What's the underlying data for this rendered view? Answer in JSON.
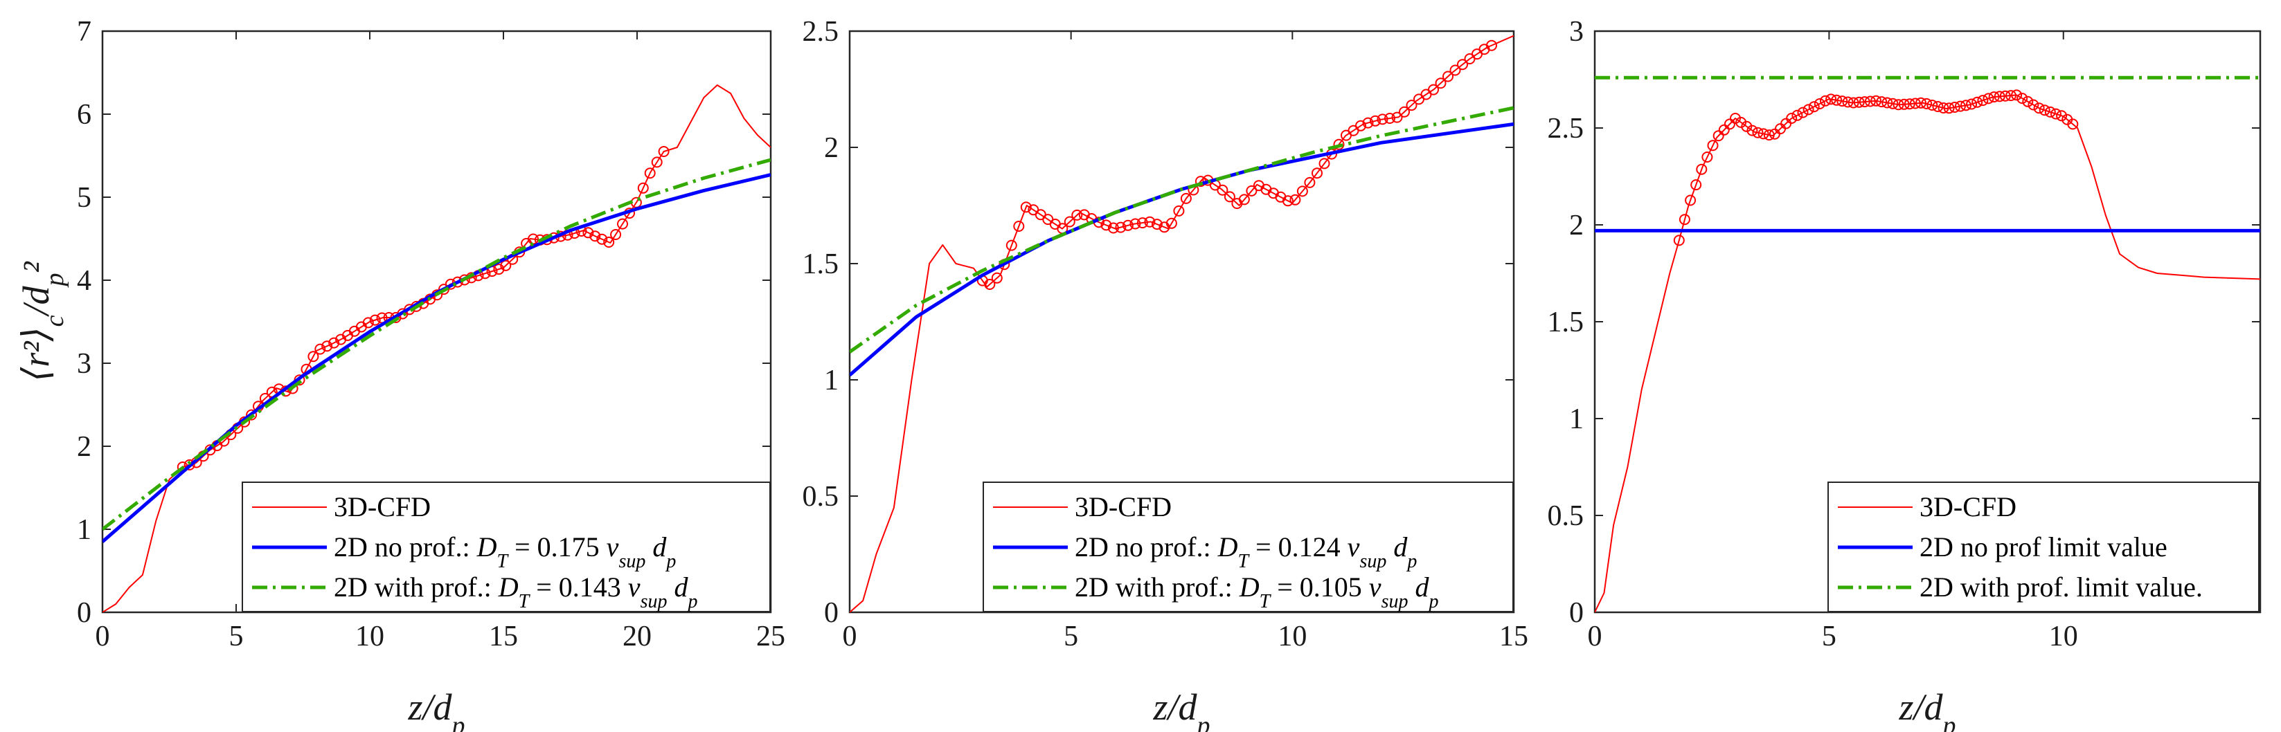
{
  "chart_data": [
    {
      "type": "line",
      "xlabel": "z/d_p",
      "ylabel": "⟨r²⟩_c/d_p²",
      "xlim": [
        0,
        25
      ],
      "ylim": [
        0,
        7
      ],
      "xticks": [
        0,
        5,
        10,
        15,
        20,
        25
      ],
      "yticks": [
        0,
        1,
        2,
        3,
        4,
        5,
        6,
        7
      ],
      "xtick_labels": [
        "0",
        "5",
        "10",
        "15",
        "20",
        "25"
      ],
      "ytick_labels": [
        "0",
        "1",
        "2",
        "3",
        "4",
        "5",
        "6",
        "7"
      ],
      "legend_position": "bottom-right",
      "series": [
        {
          "name": "3D-CFD",
          "legend": "3D-CFD",
          "style": "thin-line-with-circles",
          "color": "#ff0000",
          "x": [
            0,
            0.5,
            1,
            1.5,
            2,
            2.5,
            3,
            3.5,
            4,
            4.5,
            5,
            5.5,
            6,
            6.5,
            7,
            7.5,
            8,
            8.5,
            9,
            9.5,
            10,
            10.5,
            11,
            11.5,
            12,
            12.5,
            13,
            13.5,
            14,
            14.5,
            15,
            15.5,
            16,
            16.5,
            17,
            17.5,
            18,
            18.5,
            19,
            19.5,
            20,
            20.5,
            21,
            21.5,
            22,
            22.5,
            23,
            23.5,
            24,
            24.5,
            25
          ],
          "y": [
            0,
            0.1,
            0.3,
            0.45,
            1.1,
            1.6,
            1.75,
            1.8,
            1.95,
            2.05,
            2.2,
            2.35,
            2.55,
            2.7,
            2.65,
            2.85,
            3.15,
            3.22,
            3.3,
            3.4,
            3.5,
            3.55,
            3.55,
            3.65,
            3.72,
            3.82,
            3.95,
            4.0,
            4.05,
            4.1,
            4.15,
            4.3,
            4.5,
            4.48,
            4.52,
            4.55,
            4.6,
            4.52,
            4.45,
            4.7,
            4.95,
            5.3,
            5.55,
            5.6,
            5.9,
            6.2,
            6.35,
            6.25,
            5.95,
            5.75,
            5.6
          ],
          "marker_x_range": [
            3,
            21
          ]
        },
        {
          "name": "2D no prof.",
          "legend": "2D no prof.: ",
          "legend_formula": "D_T = 0.175 v_sup d_p",
          "style": "solid",
          "color": "#0000ff",
          "x": [
            0,
            2.5,
            5,
            7.5,
            10,
            12.5,
            15,
            17.5,
            20,
            22.5,
            25
          ],
          "y": [
            0.85,
            1.55,
            2.25,
            2.85,
            3.38,
            3.85,
            4.25,
            4.6,
            4.86,
            5.08,
            5.27
          ]
        },
        {
          "name": "2D with prof.",
          "legend": "2D with prof.: ",
          "legend_formula": "D_T = 0.143 v_sup d_p",
          "style": "dashdot",
          "color": "#33aa00",
          "x": [
            0,
            2.5,
            5,
            7.5,
            10,
            12.5,
            15,
            17.5,
            20,
            22.5,
            25
          ],
          "y": [
            1.0,
            1.62,
            2.22,
            2.8,
            3.33,
            3.83,
            4.27,
            4.65,
            4.97,
            5.23,
            5.45
          ]
        }
      ]
    },
    {
      "type": "line",
      "xlabel": "z/d_p",
      "ylabel": "",
      "xlim": [
        0,
        15
      ],
      "ylim": [
        0,
        2.5
      ],
      "xticks": [
        0,
        5,
        10,
        15
      ],
      "yticks": [
        0,
        0.5,
        1,
        1.5,
        2,
        2.5
      ],
      "xtick_labels": [
        "0",
        "5",
        "10",
        "15"
      ],
      "ytick_labels": [
        "0",
        "0.5",
        "1",
        "1.5",
        "2",
        "2.5"
      ],
      "legend_position": "bottom-right",
      "series": [
        {
          "name": "3D-CFD",
          "legend": "3D-CFD",
          "style": "thin-line-with-circles",
          "color": "#ff0000",
          "x": [
            0,
            0.3,
            0.6,
            1,
            1.4,
            1.8,
            2.1,
            2.4,
            2.8,
            3.1,
            3.4,
            3.7,
            4,
            4.4,
            4.8,
            5.2,
            5.6,
            6,
            6.4,
            6.8,
            7.2,
            7.6,
            8,
            8.4,
            8.8,
            9.2,
            9.6,
            10,
            10.4,
            10.8,
            11.2,
            11.6,
            12,
            12.4,
            12.8,
            13.2,
            13.6,
            14,
            14.4,
            15
          ],
          "y": [
            0,
            0.05,
            0.25,
            0.45,
            1.0,
            1.5,
            1.58,
            1.5,
            1.48,
            1.4,
            1.45,
            1.6,
            1.75,
            1.7,
            1.65,
            1.72,
            1.68,
            1.65,
            1.67,
            1.68,
            1.65,
            1.78,
            1.87,
            1.82,
            1.75,
            1.84,
            1.8,
            1.76,
            1.85,
            1.95,
            2.05,
            2.1,
            2.12,
            2.13,
            2.2,
            2.25,
            2.32,
            2.38,
            2.43,
            2.48
          ],
          "marker_x_range": [
            3,
            14.5
          ]
        },
        {
          "name": "2D no prof.",
          "legend": "2D no prof.: ",
          "legend_formula": "D_T = 0.124 v_sup d_p",
          "style": "solid",
          "color": "#0000ff",
          "x": [
            0,
            1.5,
            3,
            4.5,
            6,
            7.5,
            9,
            10.5,
            12,
            13.5,
            15
          ],
          "y": [
            1.02,
            1.27,
            1.45,
            1.6,
            1.72,
            1.82,
            1.9,
            1.96,
            2.02,
            2.06,
            2.1
          ]
        },
        {
          "name": "2D with prof.",
          "legend": "2D with prof.: ",
          "legend_formula": "D_T = 0.105 v_sup d_p",
          "style": "dashdot",
          "color": "#33aa00",
          "x": [
            0,
            1.5,
            3,
            4.5,
            6,
            7.5,
            9,
            10.5,
            12,
            13.5,
            15
          ],
          "y": [
            1.12,
            1.32,
            1.47,
            1.6,
            1.72,
            1.82,
            1.9,
            1.98,
            2.05,
            2.11,
            2.17
          ]
        }
      ]
    },
    {
      "type": "line",
      "xlabel": "z/d_p",
      "ylabel": "",
      "xlim": [
        0,
        14.2
      ],
      "ylim": [
        0,
        3
      ],
      "xticks": [
        0,
        5,
        10
      ],
      "yticks": [
        0,
        0.5,
        1,
        1.5,
        2,
        2.5,
        3
      ],
      "xtick_labels": [
        "0",
        "5",
        "10"
      ],
      "ytick_labels": [
        "0",
        "0.5",
        "1",
        "1.5",
        "2",
        "2.5",
        "3"
      ],
      "legend_position": "bottom-right",
      "series": [
        {
          "name": "3D-CFD",
          "legend": "3D-CFD",
          "style": "thin-line-with-circles",
          "color": "#ff0000",
          "x": [
            0,
            0.2,
            0.4,
            0.7,
            1.0,
            1.3,
            1.6,
            1.8,
            2.0,
            2.3,
            2.6,
            3.0,
            3.4,
            3.8,
            4.2,
            4.6,
            5.0,
            5.5,
            6.0,
            6.5,
            7.0,
            7.5,
            8.0,
            8.5,
            9.0,
            9.5,
            10.0,
            10.3,
            10.6,
            10.9,
            11.2,
            11.6,
            12.0,
            12.5,
            13.0,
            14.2
          ],
          "y": [
            0,
            0.1,
            0.45,
            0.75,
            1.15,
            1.45,
            1.75,
            1.92,
            2.1,
            2.3,
            2.45,
            2.55,
            2.48,
            2.46,
            2.55,
            2.6,
            2.65,
            2.63,
            2.64,
            2.62,
            2.63,
            2.6,
            2.62,
            2.66,
            2.67,
            2.6,
            2.56,
            2.5,
            2.3,
            2.05,
            1.85,
            1.78,
            1.75,
            1.74,
            1.73,
            1.72
          ],
          "marker_x_range": [
            1.8,
            10.2
          ]
        },
        {
          "name": "2D no prof limit value",
          "legend": "2D no prof limit value",
          "style": "solid",
          "color": "#0000ff",
          "x": [
            0,
            14.2
          ],
          "y": [
            1.97,
            1.97
          ]
        },
        {
          "name": "2D with prof. limit value.",
          "legend": "2D with prof. limit value.",
          "style": "dashdot",
          "color": "#33aa00",
          "x": [
            0,
            14.2
          ],
          "y": [
            2.76,
            2.76
          ]
        }
      ]
    }
  ]
}
